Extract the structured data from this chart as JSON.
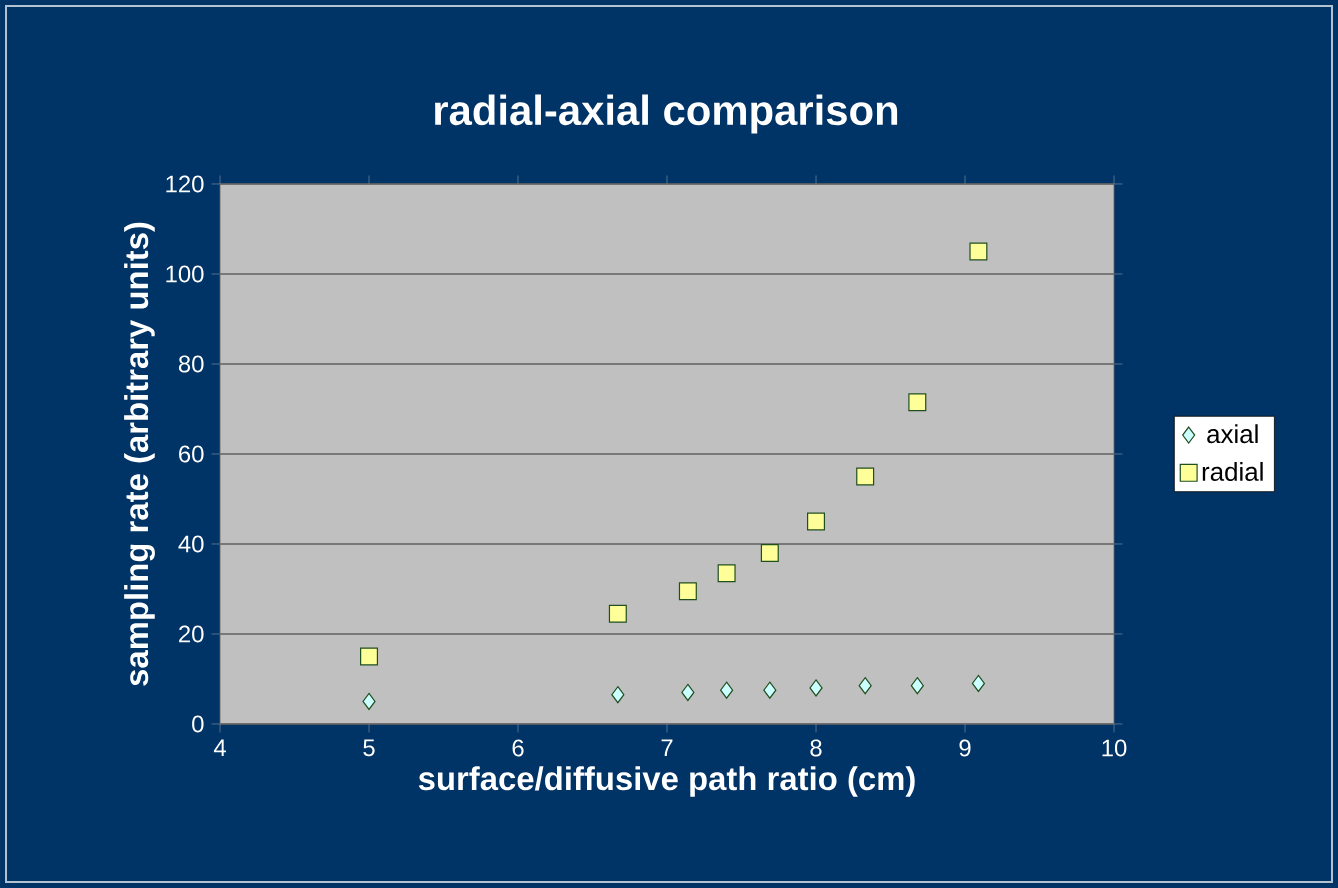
{
  "chart_data": {
    "type": "scatter",
    "title": "radial-axial comparison",
    "xlabel": "surface/diffusive path ratio (cm)",
    "ylabel": "sampling rate (arbitrary units)",
    "xlim": [
      4,
      10
    ],
    "xticks": [
      4,
      5,
      6,
      7,
      8,
      9,
      10
    ],
    "ylim": [
      0,
      120
    ],
    "yticks": [
      0,
      20,
      40,
      60,
      80,
      100,
      120
    ],
    "grid": "y",
    "legend": "right",
    "x": [
      5,
      6.67,
      7.14,
      7.4,
      7.69,
      8,
      8.33,
      8.68,
      9.09
    ],
    "series": [
      {
        "name": "axial",
        "color": "#ccffff",
        "marker": "diamond",
        "values": [
          5,
          6.5,
          7,
          7.5,
          7.5,
          8,
          8.5,
          8.5,
          9
        ]
      },
      {
        "name": "radial",
        "color": "#ffff99",
        "marker": "square",
        "values": [
          15,
          24.5,
          29.5,
          33.5,
          38,
          45,
          55,
          71.5,
          105
        ]
      }
    ]
  }
}
